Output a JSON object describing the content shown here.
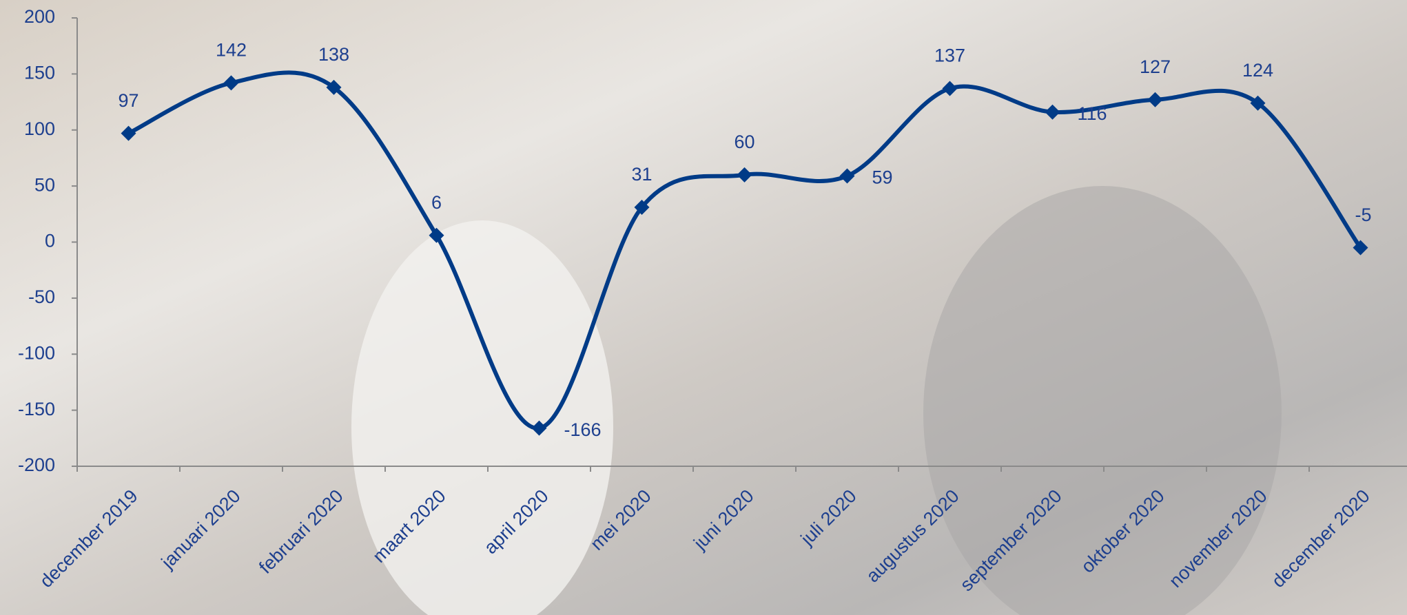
{
  "chart_data": {
    "type": "line",
    "categories": [
      "december 2019",
      "januari 2020",
      "februari 2020",
      "maart 2020",
      "april 2020",
      "mei 2020",
      "juni 2020",
      "juli 2020",
      "augustus 2020",
      "september 2020",
      "oktober 2020",
      "november 2020",
      "december 2020"
    ],
    "values": [
      97,
      142,
      138,
      6,
      -166,
      31,
      60,
      59,
      137,
      116,
      127,
      124,
      -5
    ],
    "color": "#003b87",
    "ylim": [
      -200,
      200
    ],
    "yticks": [
      -200,
      -150,
      -100,
      -50,
      0,
      50,
      100,
      150,
      200
    ],
    "grid": false,
    "smooth": true,
    "marker": "diamond"
  }
}
